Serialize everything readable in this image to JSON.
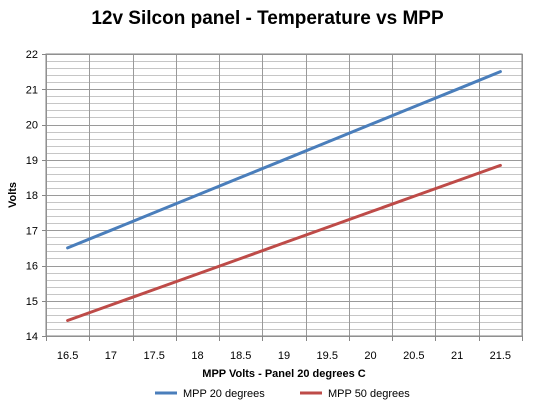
{
  "chart_data": {
    "type": "line",
    "title": "12v Silcon panel - Temperature vs MPP",
    "xlabel": "MPP Volts - Panel 20 degrees C",
    "ylabel": "Volts",
    "x": [
      16.5,
      17,
      17.5,
      18,
      18.5,
      19,
      19.5,
      20,
      20.5,
      21,
      21.5
    ],
    "x_tick_labels": [
      "16.5",
      "17",
      "17.5",
      "18",
      "18.5",
      "19",
      "19.5",
      "20",
      "20.5",
      "21",
      "21.5"
    ],
    "xlim": [
      16.25,
      21.75
    ],
    "ylim": [
      14,
      22
    ],
    "y_ticks": [
      14,
      15,
      16,
      17,
      18,
      19,
      20,
      21,
      22
    ],
    "y_minor_step": 0.2,
    "grid": true,
    "legend_position": "bottom",
    "series": [
      {
        "name": "MPP 20 degrees",
        "color": "#4a7ebb",
        "values": [
          16.5,
          17,
          17.5,
          18,
          18.5,
          19,
          19.5,
          20,
          20.5,
          21,
          21.5
        ]
      },
      {
        "name": "MPP 50 degrees",
        "color": "#be4b48",
        "values": [
          14.44,
          14.88,
          15.32,
          15.76,
          16.2,
          16.64,
          17.08,
          17.52,
          17.96,
          18.4,
          18.84
        ]
      }
    ]
  }
}
